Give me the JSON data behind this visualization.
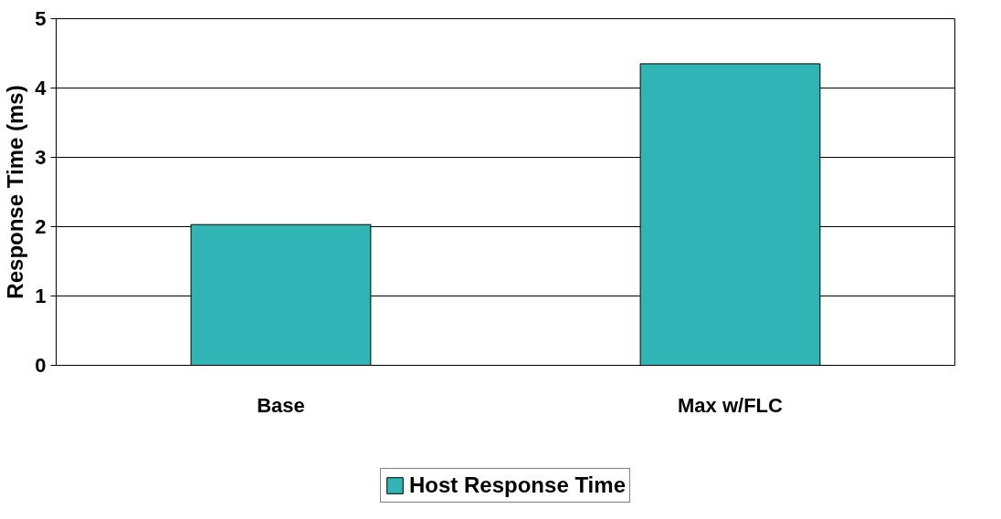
{
  "chart_data": {
    "type": "bar",
    "ylabel": "Response Time (ms)",
    "categories": [
      "Base",
      "Max w/FLC"
    ],
    "series": [
      {
        "name": "Host Response Time",
        "color": "#31b4b4",
        "values": [
          2.03,
          4.35
        ]
      }
    ],
    "ylim": [
      0,
      5
    ],
    "yticks": [
      0,
      1,
      2,
      3,
      4,
      5
    ],
    "grid": "y",
    "legend": "bottom"
  }
}
